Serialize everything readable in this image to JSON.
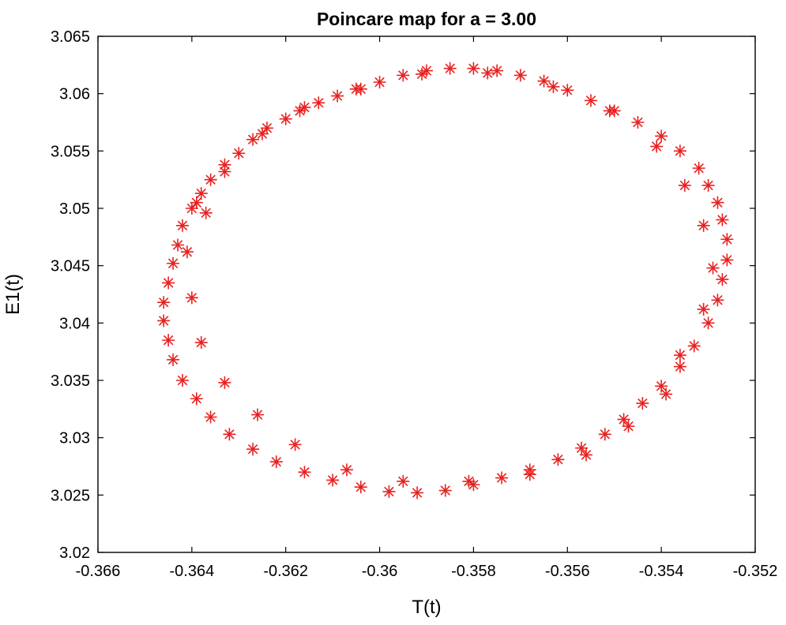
{
  "chart_data": {
    "type": "scatter",
    "title": "Poincare map for a = 3.00",
    "xlabel": "T(t)",
    "ylabel": "E1(t)",
    "xlim": [
      -0.366,
      -0.352
    ],
    "ylim": [
      3.02,
      3.065
    ],
    "xticks": [
      "-0.366",
      "-0.364",
      "-0.362",
      "-0.36",
      "-0.358",
      "-0.356",
      "-0.354",
      "-0.352"
    ],
    "yticks": [
      "3.02",
      "3.025",
      "3.03",
      "3.035",
      "3.04",
      "3.045",
      "3.05",
      "3.055",
      "3.06",
      "3.065"
    ],
    "grid": false,
    "legend": "none",
    "marker": "asterisk",
    "marker_color": "#e8201f",
    "series": [
      {
        "points": [
          [
            -0.3646,
            3.0418
          ],
          [
            -0.3645,
            3.0435
          ],
          [
            -0.3644,
            3.0452
          ],
          [
            -0.3643,
            3.0468
          ],
          [
            -0.3642,
            3.0485
          ],
          [
            -0.364,
            3.05
          ],
          [
            -0.3638,
            3.0513
          ],
          [
            -0.3636,
            3.0525
          ],
          [
            -0.3633,
            3.0538
          ],
          [
            -0.363,
            3.0548
          ],
          [
            -0.3627,
            3.056
          ],
          [
            -0.3624,
            3.057
          ],
          [
            -0.362,
            3.0578
          ],
          [
            -0.3617,
            3.0585
          ],
          [
            -0.3613,
            3.0592
          ],
          [
            -0.3609,
            3.0598
          ],
          [
            -0.3605,
            3.0604
          ],
          [
            -0.36,
            3.061
          ],
          [
            -0.3595,
            3.0616
          ],
          [
            -0.359,
            3.062
          ],
          [
            -0.3585,
            3.0622
          ],
          [
            -0.358,
            3.0622
          ],
          [
            -0.3575,
            3.062
          ],
          [
            -0.357,
            3.0616
          ],
          [
            -0.3565,
            3.0611
          ],
          [
            -0.356,
            3.0603
          ],
          [
            -0.3555,
            3.0594
          ],
          [
            -0.355,
            3.0585
          ],
          [
            -0.3545,
            3.0575
          ],
          [
            -0.354,
            3.0563
          ],
          [
            -0.3536,
            3.055
          ],
          [
            -0.3532,
            3.0535
          ],
          [
            -0.353,
            3.052
          ],
          [
            -0.3528,
            3.0505
          ],
          [
            -0.3527,
            3.049
          ],
          [
            -0.3526,
            3.0473
          ],
          [
            -0.3526,
            3.0455
          ],
          [
            -0.3527,
            3.0438
          ],
          [
            -0.3528,
            3.042
          ],
          [
            -0.353,
            3.04
          ],
          [
            -0.3533,
            3.038
          ],
          [
            -0.3536,
            3.0362
          ],
          [
            -0.354,
            3.0345
          ],
          [
            -0.3544,
            3.033
          ],
          [
            -0.3548,
            3.0316
          ],
          [
            -0.3552,
            3.0303
          ],
          [
            -0.3557,
            3.0291
          ],
          [
            -0.3562,
            3.0281
          ],
          [
            -0.3568,
            3.0272
          ],
          [
            -0.3574,
            3.0265
          ],
          [
            -0.358,
            3.0259
          ],
          [
            -0.3586,
            3.0254
          ],
          [
            -0.3592,
            3.0252
          ],
          [
            -0.3598,
            3.0253
          ],
          [
            -0.3604,
            3.0257
          ],
          [
            -0.361,
            3.0263
          ],
          [
            -0.3616,
            3.027
          ],
          [
            -0.3622,
            3.0279
          ],
          [
            -0.3627,
            3.029
          ],
          [
            -0.3632,
            3.0303
          ],
          [
            -0.3636,
            3.0318
          ],
          [
            -0.3639,
            3.0334
          ],
          [
            -0.3642,
            3.035
          ],
          [
            -0.3644,
            3.0368
          ],
          [
            -0.3645,
            3.0385
          ],
          [
            -0.3646,
            3.0402
          ],
          [
            -0.3639,
            3.0505
          ],
          [
            -0.3641,
            3.0462
          ],
          [
            -0.364,
            3.0422
          ],
          [
            -0.3638,
            3.0383
          ],
          [
            -0.3633,
            3.0348
          ],
          [
            -0.3626,
            3.032
          ],
          [
            -0.3618,
            3.0294
          ],
          [
            -0.3607,
            3.0272
          ],
          [
            -0.3595,
            3.0262
          ],
          [
            -0.3581,
            3.0262
          ],
          [
            -0.3568,
            3.0268
          ],
          [
            -0.3556,
            3.0285
          ],
          [
            -0.3547,
            3.031
          ],
          [
            -0.3539,
            3.0338
          ],
          [
            -0.3536,
            3.0372
          ],
          [
            -0.3531,
            3.0412
          ],
          [
            -0.3529,
            3.0448
          ],
          [
            -0.3531,
            3.0485
          ],
          [
            -0.3535,
            3.052
          ],
          [
            -0.3541,
            3.0554
          ],
          [
            -0.3551,
            3.0585
          ],
          [
            -0.3563,
            3.0606
          ],
          [
            -0.3577,
            3.0618
          ],
          [
            -0.3591,
            3.0617
          ],
          [
            -0.3604,
            3.0604
          ],
          [
            -0.3616,
            3.0588
          ],
          [
            -0.3625,
            3.0565
          ],
          [
            -0.3633,
            3.0532
          ],
          [
            -0.3637,
            3.0496
          ]
        ]
      }
    ]
  }
}
